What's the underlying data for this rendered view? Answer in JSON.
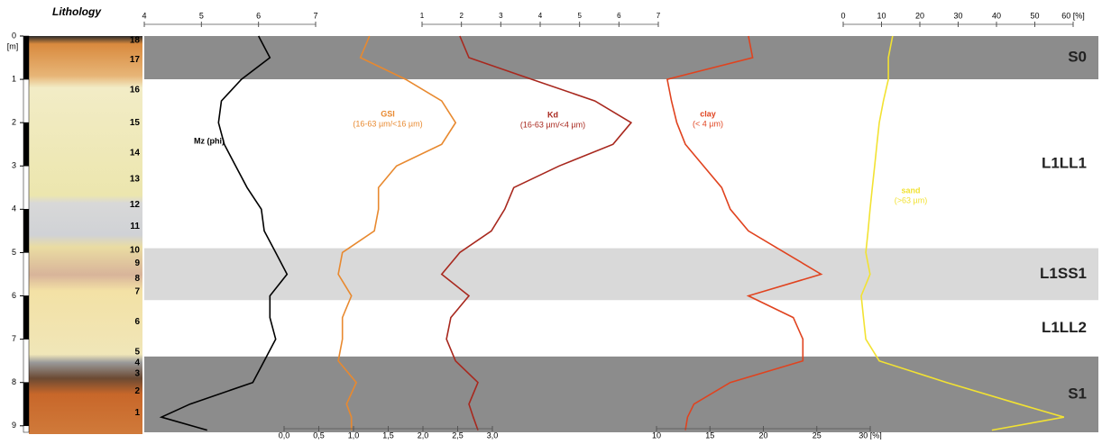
{
  "chart_data": {
    "type": "depth-profile",
    "lithology_title": "Lithology",
    "depth_unit": "[m]",
    "depth_lim": [
      0,
      9.15
    ],
    "depth_ticks": [
      0,
      1,
      2,
      3,
      4,
      5,
      6,
      7,
      8,
      9
    ],
    "layers": [
      {
        "number": 18,
        "depth": 0.1
      },
      {
        "number": 17,
        "depth": 0.55
      },
      {
        "number": 16,
        "depth": 1.25
      },
      {
        "number": 15,
        "depth": 2.0
      },
      {
        "number": 14,
        "depth": 2.7
      },
      {
        "number": 13,
        "depth": 3.3
      },
      {
        "number": 12,
        "depth": 3.9
      },
      {
        "number": 11,
        "depth": 4.4
      },
      {
        "number": 10,
        "depth": 4.95
      },
      {
        "number": 9,
        "depth": 5.25
      },
      {
        "number": 8,
        "depth": 5.6
      },
      {
        "number": 7,
        "depth": 5.9
      },
      {
        "number": 6,
        "depth": 6.6
      },
      {
        "number": 5,
        "depth": 7.3
      },
      {
        "number": 4,
        "depth": 7.55
      },
      {
        "number": 3,
        "depth": 7.8
      },
      {
        "number": 2,
        "depth": 8.2
      },
      {
        "number": 1,
        "depth": 8.7
      }
    ],
    "units": [
      {
        "name": "S0",
        "top": 0,
        "bottom": 1,
        "color": "#8c8c8c"
      },
      {
        "name": "L1LL1",
        "top": 1,
        "bottom": 4.9,
        "color": "#ffffff"
      },
      {
        "name": "L1SS1",
        "top": 4.9,
        "bottom": 6.1,
        "color": "#d9d9d9"
      },
      {
        "name": "L1LL2",
        "top": 6.1,
        "bottom": 7.4,
        "color": "#ffffff"
      },
      {
        "name": "S1",
        "top": 7.4,
        "bottom": 9.15,
        "color": "#8c8c8c"
      }
    ],
    "axes": [
      {
        "id": "mz",
        "position": "top",
        "lim": [
          4,
          7
        ],
        "ticks": [
          4,
          5,
          6,
          7
        ]
      },
      {
        "id": "kd",
        "position": "top",
        "lim": [
          1,
          7
        ],
        "ticks": [
          1,
          2,
          3,
          4,
          5,
          6,
          7
        ]
      },
      {
        "id": "sand",
        "position": "top",
        "lim": [
          0,
          60
        ],
        "ticks": [
          0,
          10,
          20,
          30,
          40,
          50,
          {
            "value": 60,
            "label": "60 [%]"
          }
        ]
      },
      {
        "id": "gsi",
        "position": "bottom",
        "lim": [
          0,
          3
        ],
        "ticks": [
          {
            "value": 0,
            "label": "0,0"
          },
          {
            "value": 0.5,
            "label": "0,5"
          },
          {
            "value": 1,
            "label": "1,0"
          },
          {
            "value": 1.5,
            "label": "1,5"
          },
          {
            "value": 2,
            "label": "2,0"
          },
          {
            "value": 2.5,
            "label": "2,5"
          },
          {
            "value": 3,
            "label": "3,0"
          }
        ]
      },
      {
        "id": "clay",
        "position": "bottom",
        "lim": [
          10,
          30
        ],
        "ticks": [
          10,
          15,
          20,
          25,
          {
            "value": 30,
            "label": "30 [%]"
          }
        ]
      }
    ],
    "depth": [
      0,
      0.5,
      1,
      1.5,
      2,
      2.5,
      3,
      3.5,
      4,
      4.5,
      5,
      5.5,
      6,
      6.5,
      7,
      7.5,
      8,
      8.5,
      8.8,
      9.1
    ],
    "series": [
      {
        "name": "Mz (phi)",
        "axis": "mz",
        "color": "#000000",
        "values": [
          6.0,
          6.2,
          5.7,
          5.35,
          5.3,
          5.4,
          5.6,
          5.8,
          6.05,
          6.1,
          6.3,
          6.5,
          6.2,
          6.2,
          6.3,
          6.1,
          5.9,
          4.8,
          4.3,
          5.1
        ]
      },
      {
        "name": "GSI",
        "range": "(16-63 µm/<16 µm)",
        "axis": "gsi",
        "color": "#e8892f",
        "values": [
          1.23,
          1.1,
          1.75,
          2.27,
          2.47,
          2.27,
          1.62,
          1.36,
          1.36,
          1.3,
          0.84,
          0.78,
          0.97,
          0.84,
          0.84,
          0.78,
          1.04,
          0.9,
          0.97,
          0.97
        ]
      },
      {
        "name": "Kd",
        "range": "(16-63 µm/<4 µm)",
        "axis": "kd",
        "color": "#a8281e",
        "values": [
          1.96,
          2.19,
          3.79,
          5.39,
          6.31,
          5.85,
          4.48,
          3.33,
          3.1,
          2.76,
          1.96,
          1.5,
          2.19,
          1.73,
          1.62,
          1.85,
          2.42,
          2.19,
          2.3,
          2.42
        ]
      },
      {
        "name": "clay",
        "range": "(< 4  µm)",
        "axis": "clay",
        "color": "#e0431f",
        "values": [
          18.6,
          19.0,
          11.0,
          11.4,
          11.9,
          12.7,
          14.4,
          16.1,
          16.9,
          18.6,
          22.0,
          25.4,
          18.6,
          22.8,
          23.7,
          23.7,
          16.9,
          13.5,
          12.9,
          12.7
        ]
      },
      {
        "name": "sand",
        "range": "(>63 µm)",
        "axis": "sand",
        "color": "#f2e232",
        "values": [
          12.9,
          11.8,
          11.8,
          10.5,
          9.4,
          8.8,
          8.2,
          7.6,
          7.0,
          6.5,
          5.9,
          7.0,
          4.7,
          5.3,
          5.9,
          9.4,
          27.0,
          45.9,
          57.6,
          38.8
        ]
      }
    ]
  }
}
